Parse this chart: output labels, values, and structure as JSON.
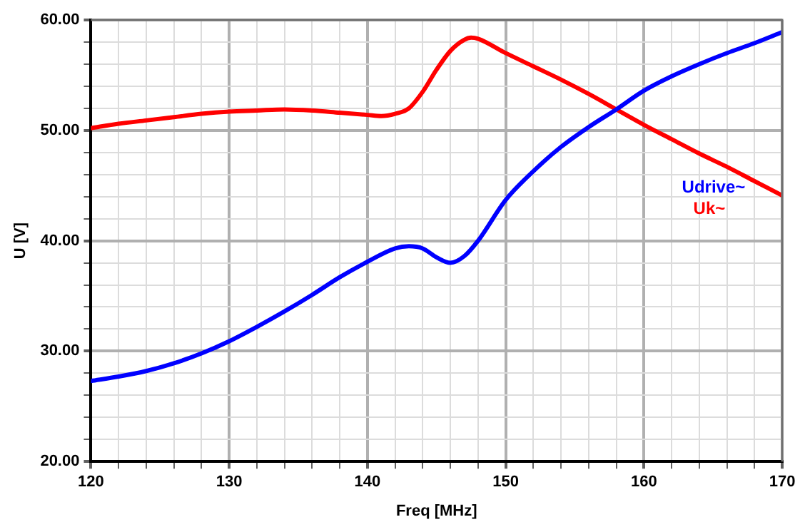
{
  "chart_data": {
    "type": "line",
    "xlabel": "Freq [MHz]",
    "ylabel": "U [V]",
    "xlim": [
      120,
      170
    ],
    "xticks": [
      120,
      {
        "value": 122,
        "label": null
      },
      {
        "value": 124,
        "label": null
      },
      {
        "value": 126,
        "label": null
      },
      {
        "value": 128,
        "label": null
      },
      130,
      {
        "value": 132,
        "label": null
      },
      {
        "value": 134,
        "label": null
      },
      {
        "value": 136,
        "label": null
      },
      {
        "value": 138,
        "label": null
      },
      140,
      {
        "value": 142,
        "label": null
      },
      {
        "value": 144,
        "label": null
      },
      {
        "value": 146,
        "label": null
      },
      {
        "value": 148,
        "label": null
      },
      150,
      {
        "value": 152,
        "label": null
      },
      {
        "value": 154,
        "label": null
      },
      {
        "value": 156,
        "label": null
      },
      {
        "value": 158,
        "label": null
      },
      160,
      {
        "value": 162,
        "label": null
      },
      {
        "value": 164,
        "label": null
      },
      {
        "value": 166,
        "label": null
      },
      {
        "value": 168,
        "label": null
      },
      170
    ],
    "ylim": [
      20,
      60
    ],
    "yticks": [
      {
        "value": 20,
        "label": "20.00"
      },
      {
        "value": 22,
        "label": null
      },
      {
        "value": 24,
        "label": null
      },
      {
        "value": 26,
        "label": null
      },
      {
        "value": 28,
        "label": null
      },
      {
        "value": 30,
        "label": "30.00"
      },
      {
        "value": 32,
        "label": null
      },
      {
        "value": 34,
        "label": null
      },
      {
        "value": 36,
        "label": null
      },
      {
        "value": 38,
        "label": null
      },
      {
        "value": 40,
        "label": "40.00"
      },
      {
        "value": 42,
        "label": null
      },
      {
        "value": 44,
        "label": null
      },
      {
        "value": 46,
        "label": null
      },
      {
        "value": 48,
        "label": null
      },
      {
        "value": 50,
        "label": "50.00"
      },
      {
        "value": 52,
        "label": null
      },
      {
        "value": 54,
        "label": null
      },
      {
        "value": 56,
        "label": null
      },
      {
        "value": 58,
        "label": null
      },
      {
        "value": 60,
        "label": "60.00"
      }
    ],
    "grid": true,
    "legend": false,
    "marker": "none",
    "line_style": "solid",
    "series": [
      {
        "name": "Udrive~",
        "color": "#0000ff",
        "x": [
          120,
          122,
          124,
          126,
          128,
          130,
          132,
          134,
          136,
          138,
          140,
          142,
          143,
          144,
          145,
          146,
          147,
          148,
          150,
          152,
          154,
          156,
          158,
          160,
          162,
          164,
          166,
          168,
          170
        ],
        "values": [
          27.3,
          27.7,
          28.2,
          28.9,
          29.8,
          30.9,
          32.2,
          33.6,
          35.1,
          36.7,
          38.1,
          39.3,
          39.5,
          39.3,
          38.5,
          38.0,
          38.6,
          40.0,
          43.7,
          46.3,
          48.5,
          50.3,
          51.9,
          53.6,
          54.9,
          56.0,
          57.0,
          57.9,
          58.9
        ]
      },
      {
        "name": "Uk~",
        "color": "#ff0000",
        "x": [
          120,
          122,
          124,
          126,
          128,
          130,
          132,
          134,
          136,
          138,
          140,
          141,
          142,
          143,
          144,
          145,
          146,
          147,
          147.5,
          148,
          150,
          152,
          154,
          156,
          158,
          160,
          162,
          164,
          166,
          168,
          170
        ],
        "values": [
          50.2,
          50.6,
          50.9,
          51.2,
          51.5,
          51.7,
          51.8,
          51.9,
          51.8,
          51.6,
          51.4,
          51.3,
          51.5,
          52.0,
          53.5,
          55.5,
          57.2,
          58.2,
          58.4,
          58.3,
          57.0,
          55.8,
          54.6,
          53.3,
          51.9,
          50.5,
          49.2,
          47.9,
          46.7,
          45.4,
          44.1
        ]
      }
    ]
  }
}
